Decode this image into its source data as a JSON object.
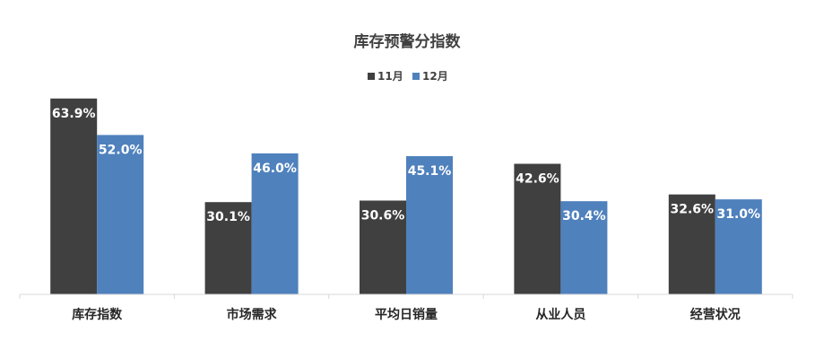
{
  "chart_data": {
    "type": "bar",
    "title": "库存预警分指数",
    "xlabel": "",
    "ylabel": "",
    "categories": [
      "库存指数",
      "市场需求",
      "平均日销量",
      "从业人员",
      "经营状况"
    ],
    "series": [
      {
        "name": "11月",
        "values": [
          63.9,
          30.1,
          30.6,
          42.6,
          32.6
        ],
        "labels": [
          "63.9%",
          "30.1%",
          "30.6%",
          "42.6%",
          "32.6%"
        ],
        "color": "#404040"
      },
      {
        "name": "12月",
        "values": [
          52.0,
          46.0,
          45.1,
          30.4,
          31.0
        ],
        "labels": [
          "52.0%",
          "46.0%",
          "45.1%",
          "30.4%",
          "31.0%"
        ],
        "color": "#4f81bd"
      }
    ],
    "ylim": [
      0,
      65
    ],
    "grid": false,
    "legend_position": "top"
  }
}
